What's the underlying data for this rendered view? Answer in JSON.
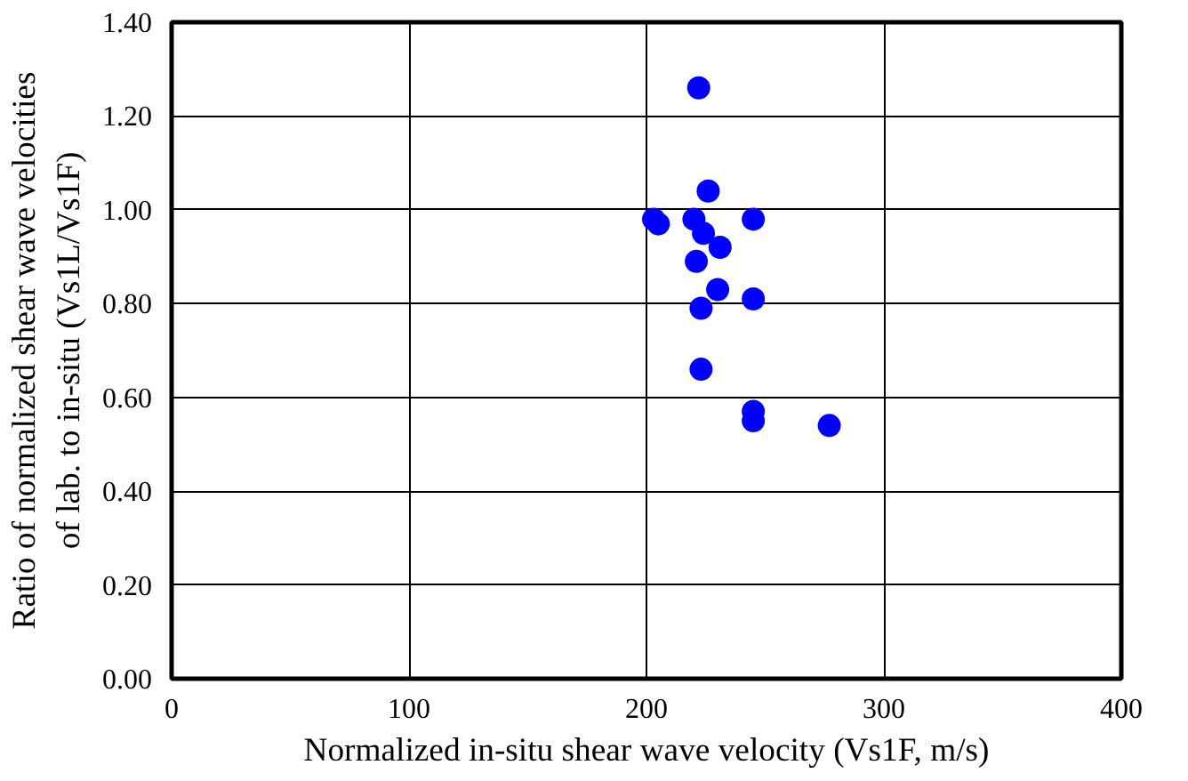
{
  "chart_data": {
    "type": "scatter",
    "xlabel": "Normalized in-situ shear wave velocity (Vs1F, m/s)",
    "ylabel": "Ratio of normalized shear wave velocities\nof lab. to in-situ (Vs1L/Vs1F)",
    "xlim": [
      0,
      400
    ],
    "xticks": [
      0,
      100,
      200,
      300,
      400
    ],
    "ylim": [
      0,
      1.4
    ],
    "yticks": [
      {
        "value": 0,
        "label": "0.00"
      },
      {
        "value": 0.2,
        "label": "0.20"
      },
      {
        "value": 0.4,
        "label": "0.40"
      },
      {
        "value": 0.6,
        "label": "0.60"
      },
      {
        "value": 0.8,
        "label": "0.80"
      },
      {
        "value": 1.0,
        "label": "1.00"
      },
      {
        "value": 1.2,
        "label": "1.20"
      },
      {
        "value": 1.4,
        "label": "1.40"
      }
    ],
    "grid": true,
    "marker": "circle",
    "series": [
      {
        "color": "#0000ff",
        "x": [
          222,
          226,
          203,
          205,
          220,
          224,
          245,
          231,
          221,
          230,
          245,
          223,
          223,
          245,
          245,
          277
        ],
        "values": [
          1.26,
          1.04,
          0.98,
          0.97,
          0.98,
          0.95,
          0.98,
          0.92,
          0.89,
          0.83,
          0.81,
          0.79,
          0.66,
          0.57,
          0.55,
          0.54
        ]
      }
    ]
  }
}
